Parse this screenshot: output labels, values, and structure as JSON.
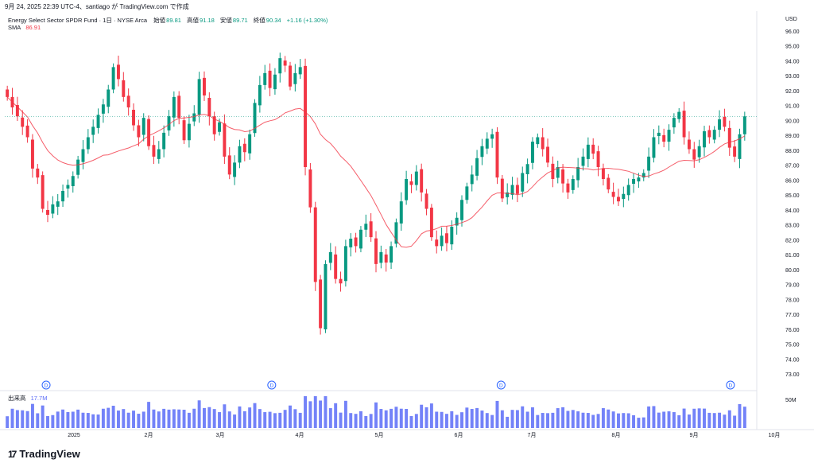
{
  "header": {
    "text": "9月 24, 2025 22:39 UTC-4、santiago が TradingView.com で作成"
  },
  "legend": {
    "symbol": "Energy Select Sector SPDR Fund · 1日 · NYSE Arca",
    "open_label": "始値",
    "open": "89.81",
    "high_label": "高値",
    "high": "91.18",
    "low_label": "安値",
    "low": "89.71",
    "close_label": "終値",
    "close": "90.34",
    "change": "+1.16 (+1.30%)"
  },
  "sma": {
    "label": "SMA",
    "value": "86.91"
  },
  "volume": {
    "label": "出来高",
    "value": "17.7M",
    "axis_label": "50M"
  },
  "logo": {
    "mark": "17",
    "text": "TradingView"
  },
  "colors": {
    "up": "#089981",
    "down": "#f23645",
    "sma": "#f23645",
    "volume_bar": "#5b6cf7",
    "text": "#131722"
  },
  "chart_data": {
    "type": "candlestick",
    "currency": "USD",
    "y_ticks": [
      "96.00",
      "95.00",
      "94.00",
      "93.00",
      "92.00",
      "91.00",
      "90.00",
      "89.00",
      "88.00",
      "87.00",
      "86.00",
      "85.00",
      "84.00",
      "83.00",
      "82.00",
      "81.00",
      "80.00",
      "79.00",
      "78.00",
      "77.00",
      "76.00",
      "75.00",
      "74.00",
      "73.00"
    ],
    "ylim": [
      72.5,
      96.5
    ],
    "x_ticks": [
      "2025",
      "2月",
      "3月",
      "4月",
      "5月",
      "6月",
      "7月",
      "8月",
      "9月",
      "10月"
    ],
    "dividend_marker": "D",
    "dividend_positions": [
      0.055,
      0.355,
      0.66,
      0.965
    ],
    "closes": [
      91.6,
      90.9,
      90.3,
      89.6,
      88.9,
      86.8,
      86.2,
      84.1,
      83.7,
      84.4,
      84.6,
      85.3,
      85.7,
      86.3,
      87.4,
      88.1,
      88.9,
      89.6,
      90.4,
      91.1,
      92.1,
      93.6,
      92.8,
      91.6,
      90.9,
      89.7,
      88.9,
      90.2,
      88.3,
      87.6,
      88.1,
      89.2,
      90.3,
      91.6,
      90.2,
      88.7,
      89.8,
      90.5,
      92.8,
      91.7,
      90.3,
      89.1,
      89.9,
      87.6,
      86.4,
      87.2,
      88.3,
      87.9,
      89.1,
      91.2,
      92.4,
      93.2,
      92.2,
      93.1,
      94.2,
      93.7,
      92.3,
      93.2,
      93.6,
      86.9,
      84.2,
      79.2,
      76.1,
      80.4,
      81.2,
      79.4,
      79.1,
      81.6,
      82.1,
      81.6,
      82.7,
      83.1,
      82.2,
      80.4,
      81.2,
      80.5,
      81.6,
      83.2,
      84.6,
      86.1,
      85.7,
      86.6,
      85.2,
      84.1,
      82.2,
      81.6,
      82.3,
      81.8,
      82.9,
      83.5,
      84.7,
      85.6,
      86.4,
      87.5,
      88.3,
      88.8,
      89.1,
      86.2,
      84.8,
      85.2,
      85.7,
      85.1,
      86.5,
      87.1,
      88.6,
      88.9,
      88.1,
      87.2,
      86.1,
      86.9,
      85.8,
      85.2,
      86.1,
      86.9,
      87.6,
      88.4,
      87.8,
      86.9,
      86.1,
      85.4,
      84.9,
      84.6,
      85.1,
      85.7,
      86.1,
      86.2,
      86.5,
      87.6,
      88.9,
      89.2,
      88.6,
      89.4,
      90.2,
      90.6,
      88.9,
      88.1,
      87.4,
      88.3,
      89.3,
      88.9,
      89.4,
      90.1,
      89.6,
      88.2,
      87.6,
      89.1,
      90.3
    ]
  }
}
